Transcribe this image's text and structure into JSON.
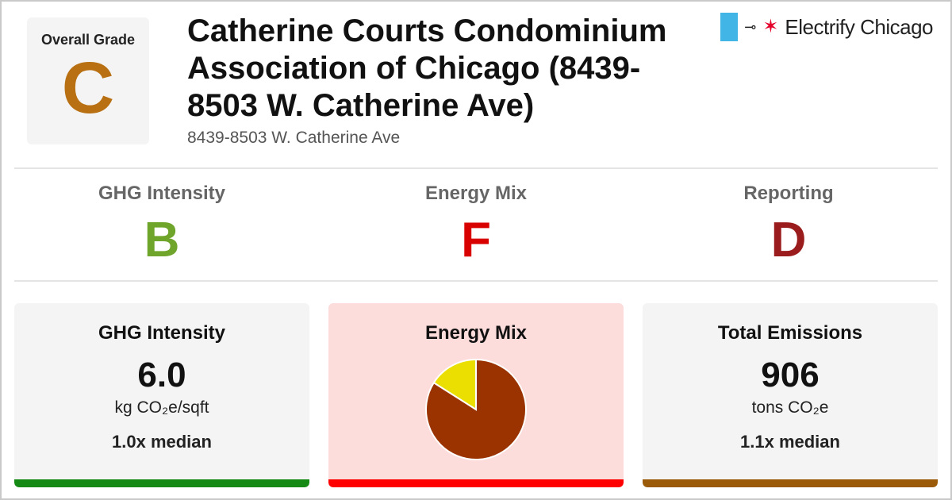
{
  "overall": {
    "label": "Overall Grade",
    "grade": "C",
    "grade_color": "#b87012"
  },
  "building": {
    "title": "Catherine Courts Condominium Association of Chicago (8439-8503 W. Catherine Ave)",
    "address": "8439-8503 W. Catherine Ave"
  },
  "brand": {
    "name": "Electrify Chicago",
    "flag_color": "#40b5e6",
    "star_color": "#e4002b",
    "plug_icon": "plug-icon"
  },
  "grades": [
    {
      "label": "GHG Intensity",
      "grade": "B",
      "color": "#6fa52b"
    },
    {
      "label": "Energy Mix",
      "grade": "F",
      "color": "#d90000"
    },
    {
      "label": "Reporting",
      "grade": "D",
      "color": "#9a1c1c"
    }
  ],
  "cards": {
    "ghg": {
      "title": "GHG Intensity",
      "value": "6.0",
      "unit": "kg CO₂e/sqft",
      "median": "1.0x median",
      "bg": "#f4f4f4",
      "bar_color": "#148a14"
    },
    "mix": {
      "title": "Energy Mix",
      "bg": "#fddcdc",
      "bar_color": "#ff0000"
    },
    "emissions": {
      "title": "Total Emissions",
      "value": "906",
      "unit": "tons CO₂e",
      "median": "1.1x median",
      "bg": "#f4f4f4",
      "bar_color": "#9a5a08"
    }
  },
  "chart_data": {
    "type": "pie",
    "slices": [
      {
        "value": 16,
        "color": "#eadf00"
      },
      {
        "value": 84,
        "color": "#9a3300"
      }
    ]
  }
}
